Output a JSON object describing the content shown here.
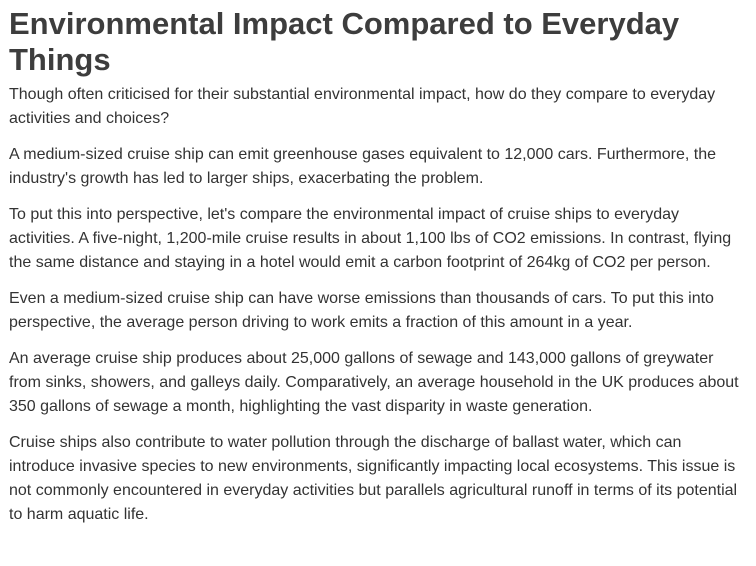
{
  "title": "Environmental Impact Compared to Everyday Things",
  "paragraphs": [
    "Though often criticised for their substantial environmental impact, how do they compare to everyday activities and choices?",
    "A medium-sized cruise ship can emit greenhouse gases equivalent to 12,000 cars. Furthermore, the industry's growth has led to larger ships, exacerbating the problem.",
    "To put this into perspective, let's compare the environmental impact of cruise ships to everyday activities. A five-night, 1,200-mile cruise results in about 1,100 lbs of CO2 emissions. In contrast, flying the same distance and staying in a hotel would emit a carbon footprint of 264kg of CO2 per person.",
    "Even a medium-sized cruise ship can have worse emissions than thousands of cars. To put this into perspective, the average person driving to work emits a fraction of this amount in a year.",
    "An average cruise ship produces about 25,000 gallons of sewage and 143,000 gallons of greywater from sinks, showers, and galleys daily. Comparatively, an average household in the UK produces about 350 gallons of sewage a month, highlighting the vast disparity in waste generation.",
    "Cruise ships also contribute to water pollution through the discharge of ballast water, which can introduce invasive species to new environments, significantly impacting local ecosystems. This issue is not commonly encountered in everyday activities but parallels agricultural runoff in terms of its potential to harm aquatic life."
  ]
}
